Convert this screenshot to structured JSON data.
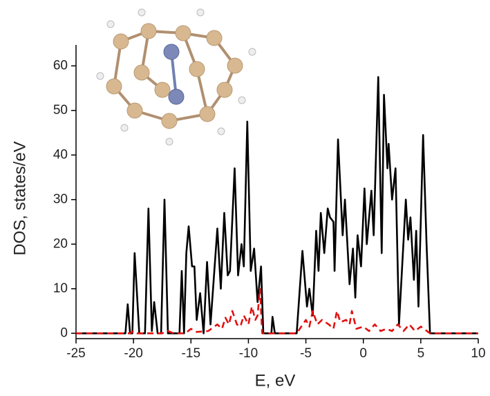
{
  "chart_data": {
    "type": "line",
    "xlabel": "E, eV",
    "ylabel": "DOS, states/eV",
    "xlim": [
      -25,
      10
    ],
    "ylim": [
      -1.2,
      64.7
    ],
    "xticks": [
      -25,
      -20,
      -15,
      -10,
      -5,
      0,
      5,
      10
    ],
    "yticks": [
      0,
      10,
      20,
      30,
      40,
      50,
      60
    ],
    "series": [
      {
        "color": "#000000",
        "dashed": false,
        "x": [
          -25,
          -20.7,
          -20.5,
          -20.3,
          -20.1,
          -19.9,
          -19.5,
          -19.0,
          -18.7,
          -18.4,
          -18.2,
          -17.9,
          -17.6,
          -17.3,
          -17.0,
          -16.0,
          -15.8,
          -15.6,
          -15.4,
          -15.2,
          -14.9,
          -14.7,
          -14.5,
          -14.2,
          -13.9,
          -13.6,
          -13.3,
          -12.7,
          -12.4,
          -12.1,
          -11.8,
          -11.6,
          -11.2,
          -10.9,
          -10.6,
          -10.4,
          -10.1,
          -9.8,
          -9.5,
          -9.2,
          -8.9,
          -8.7,
          -8.0,
          -7.9,
          -7.7,
          -5.8,
          -5.3,
          -4.9,
          -4.7,
          -4.4,
          -4.1,
          -3.9,
          -3.7,
          -3.4,
          -3.1,
          -2.9,
          -2.6,
          -2.5,
          -2.2,
          -1.8,
          -1.6,
          -1.2,
          -0.9,
          -0.7,
          -0.5,
          -0.2,
          0.1,
          0.3,
          0.7,
          0.9,
          1.3,
          1.6,
          1.8,
          2.1,
          2.2,
          2.5,
          2.8,
          3.1,
          3.7,
          3.9,
          4.1,
          4.4,
          4.6,
          4.8,
          5.2,
          5.5,
          5.8,
          10
        ],
        "values": [
          0,
          0,
          6.5,
          0,
          0,
          18,
          0,
          0,
          28,
          0.5,
          7,
          0,
          0,
          30,
          0,
          0,
          14,
          0,
          18,
          24,
          15,
          15,
          3,
          9,
          0,
          16,
          2,
          23.5,
          10,
          27,
          13,
          14,
          37,
          13,
          20,
          15,
          47.5,
          14,
          19,
          7,
          15,
          0,
          0,
          3.7,
          0,
          0,
          18.5,
          6,
          10,
          4,
          23,
          14,
          27,
          18,
          28,
          26,
          25,
          14,
          43.5,
          22,
          30,
          11,
          19,
          8,
          22,
          15,
          32.5,
          20,
          32,
          22,
          57.5,
          18,
          53.5,
          37,
          42.5,
          30,
          37,
          2,
          30,
          21,
          26,
          12,
          23,
          6,
          44.5,
          20,
          0,
          0
        ]
      },
      {
        "color": "#e01010",
        "dashed": true,
        "x": [
          -25,
          -20.3,
          -20.0,
          -19.7,
          -17.5,
          -17.0,
          -16.5,
          -15.5,
          -15.0,
          -14.5,
          -13.5,
          -12.7,
          -12.3,
          -12.0,
          -11.7,
          -11.4,
          -11.0,
          -10.7,
          -10.4,
          -10.0,
          -9.7,
          -9.4,
          -9.2,
          -9.0,
          -8.8,
          -5.8,
          -5.0,
          -4.7,
          -4.4,
          -4.0,
          -3.6,
          -3.0,
          -2.6,
          -2.3,
          -2.0,
          -1.5,
          -1.2,
          -1.0,
          -0.6,
          0.0,
          0.5,
          1.0,
          1.5,
          2.0,
          2.5,
          3.0,
          3.5,
          4.0,
          4.5,
          5.0,
          5.8,
          10
        ],
        "values": [
          0,
          0,
          0.5,
          0,
          0,
          0.5,
          0,
          0,
          1,
          0.3,
          0.5,
          2,
          1,
          3.5,
          2,
          5,
          2,
          1.5,
          4,
          2,
          6,
          3,
          4,
          10,
          0,
          0,
          3,
          1.5,
          5,
          2,
          3,
          2,
          1,
          5,
          2.5,
          3,
          2,
          5,
          1,
          1.5,
          0.5,
          2,
          0.5,
          1,
          0.5,
          2,
          0.5,
          2,
          0.5,
          1.5,
          0,
          0
        ]
      }
    ]
  }
}
